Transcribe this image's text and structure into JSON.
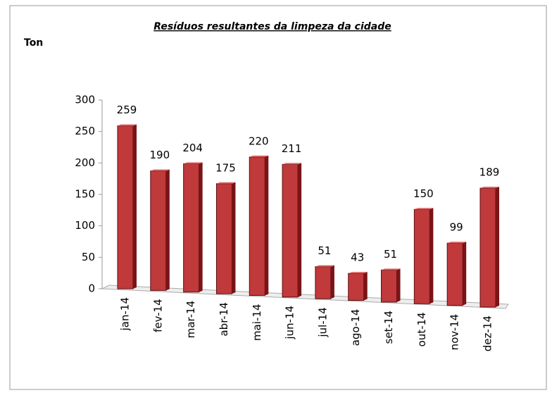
{
  "chart_data": {
    "type": "bar",
    "title": "Resíduos  resultantes da limpeza  da cidade",
    "y_label": "Ton",
    "categories": [
      "jan-14",
      "fev-14",
      "mar-14",
      "abr-14",
      "mai-14",
      "jun-14",
      "jul-14",
      "ago-14",
      "set-14",
      "out-14",
      "nov-14",
      "dez-14"
    ],
    "values": [
      259,
      190,
      204,
      175,
      220,
      211,
      51,
      43,
      51,
      150,
      99,
      189
    ],
    "color": "#c0393b",
    "ylim": [
      0,
      300
    ],
    "yticks": [
      0,
      50,
      100,
      150,
      200,
      250,
      300
    ],
    "grid": false
  }
}
